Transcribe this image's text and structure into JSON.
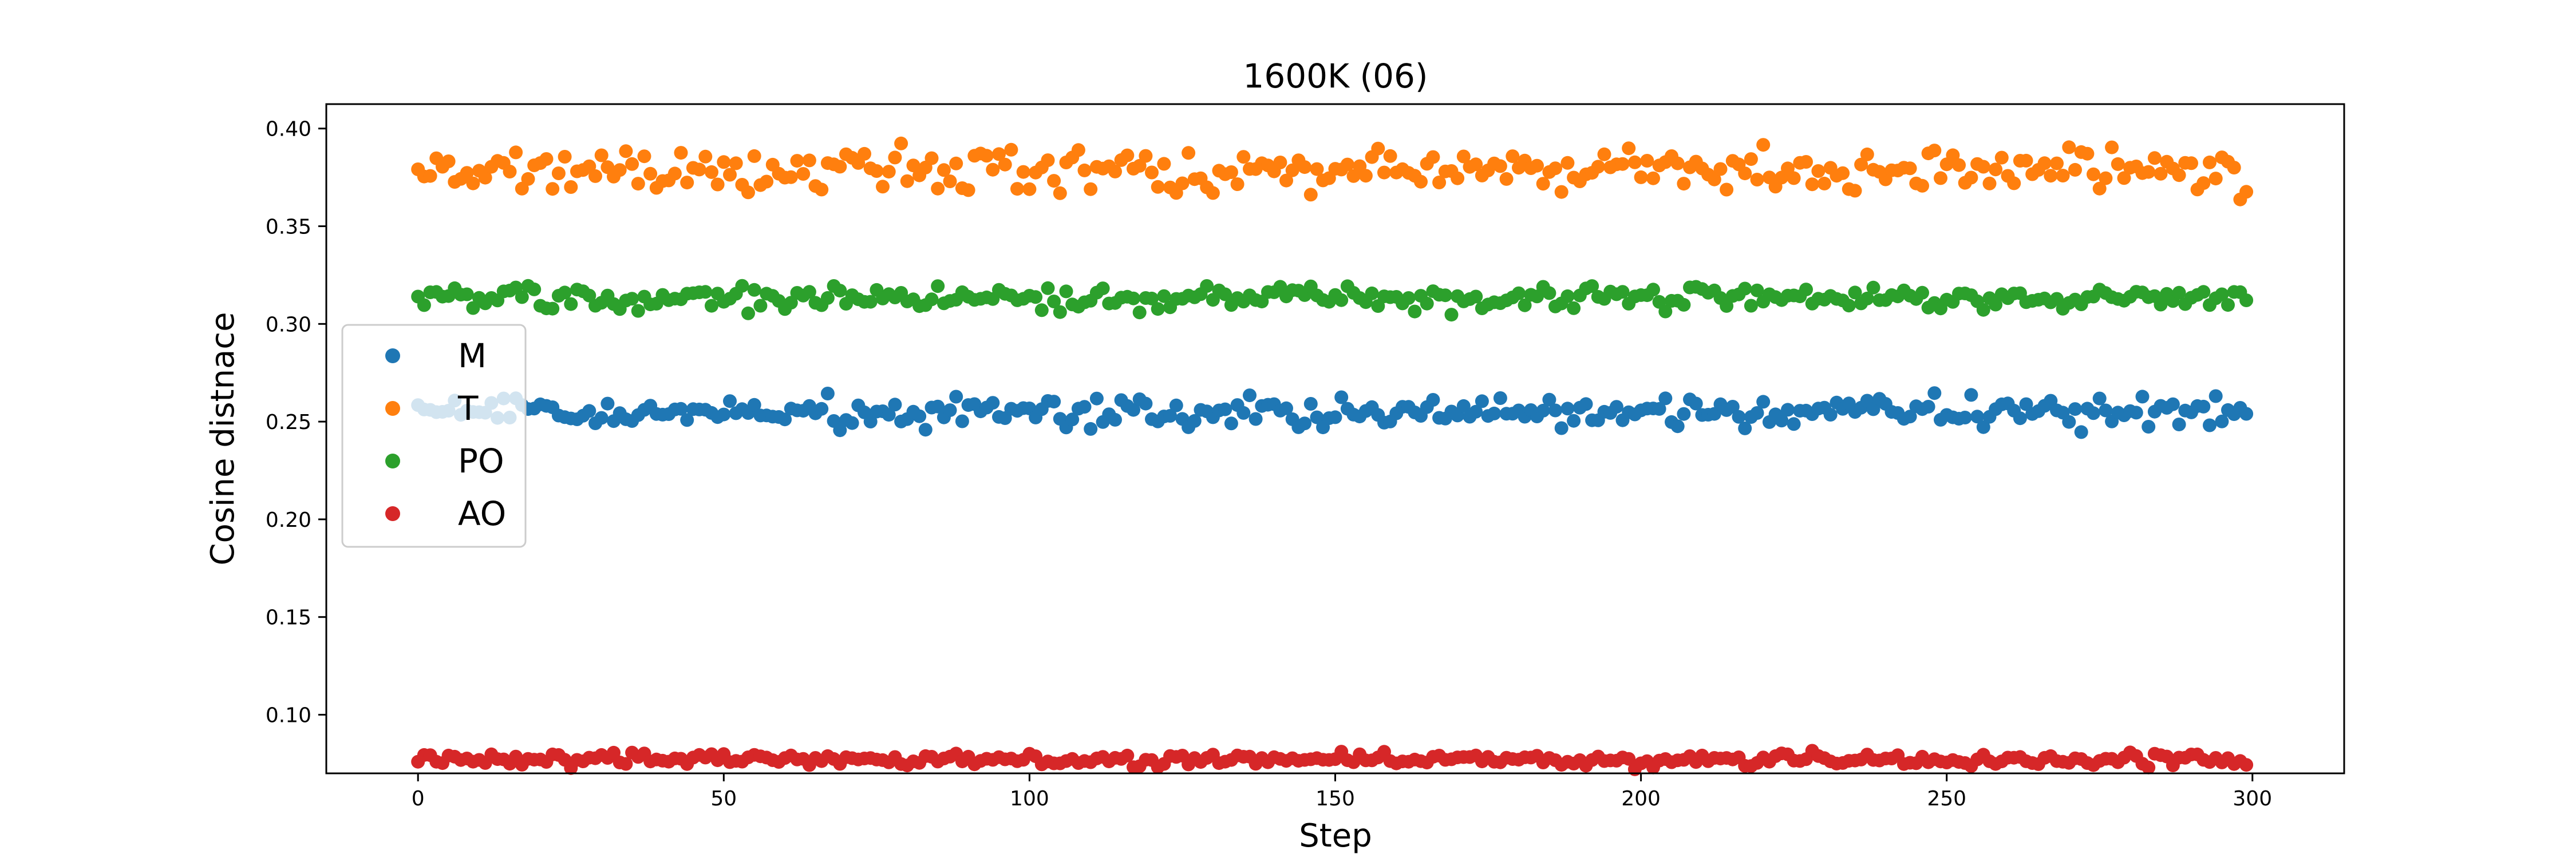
{
  "chart_data": {
    "type": "scatter",
    "title": "1600K (06)",
    "xlabel": "Step",
    "ylabel": "Cosine distnace",
    "xlim": [
      -15,
      315
    ],
    "ylim": [
      0.07,
      0.4125
    ],
    "xticks": [
      0,
      50,
      100,
      150,
      200,
      250,
      300
    ],
    "yticks": [
      0.1,
      0.15,
      0.2,
      0.25,
      0.3,
      0.35,
      0.4
    ],
    "xtick_labels": [
      "0",
      "50",
      "100",
      "150",
      "200",
      "250",
      "300"
    ],
    "ytick_labels": [
      "0.10",
      "0.15",
      "0.20",
      "0.25",
      "0.30",
      "0.35",
      "0.40"
    ],
    "grid": false,
    "legend_position": "center-left",
    "n_points": 300,
    "series": [
      {
        "name": "M",
        "color": "#1f77b4",
        "mean": 0.255,
        "spread": 0.004
      },
      {
        "name": "T",
        "color": "#ff7f0e",
        "mean": 0.379,
        "spread": 0.0055
      },
      {
        "name": "PO",
        "color": "#2ca02c",
        "mean": 0.313,
        "spread": 0.003
      },
      {
        "name": "AO",
        "color": "#d62728",
        "mean": 0.077,
        "spread": 0.0018
      }
    ]
  }
}
